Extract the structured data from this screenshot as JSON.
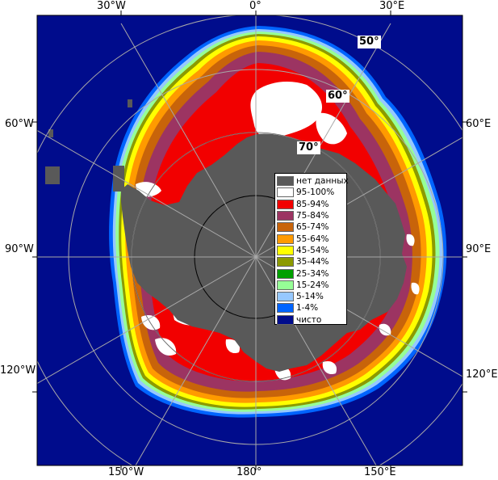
{
  "colors": {
    "ocean": "#000c8c",
    "land": "#595959",
    "frame_bg": "#ffffff",
    "graticule": "#a8a8a8",
    "circle": "#000000"
  },
  "legend": [
    {
      "label": "нет данных",
      "color": "#595959"
    },
    {
      "label": "95-100%",
      "color": "#ffffff"
    },
    {
      "label": "85-94%",
      "color": "#f20000"
    },
    {
      "label": "75-84%",
      "color": "#9c3462"
    },
    {
      "label": "65-74%",
      "color": "#c8640a"
    },
    {
      "label": "55-64%",
      "color": "#ff9a00"
    },
    {
      "label": "45-54%",
      "color": "#ffff00"
    },
    {
      "label": "35-44%",
      "color": "#8c9a00"
    },
    {
      "label": "25-34%",
      "color": "#00a000"
    },
    {
      "label": "15-24%",
      "color": "#96ff96"
    },
    {
      "label": "5-14%",
      "color": "#96c8ff"
    },
    {
      "label": "1-4%",
      "color": "#0064ff"
    },
    {
      "label": "чисто",
      "color": "#000c8c"
    }
  ],
  "longitude_labels": {
    "top_30w": "30°W",
    "top_0": "0°",
    "top_30e": "30°E",
    "left_60w": "60°W",
    "right_60e": "60°E",
    "left_90w": "90°W",
    "right_90e": "90°E",
    "left_120w": "120°W",
    "right_120e": "120°E",
    "bottom_150w": "150°W",
    "bottom_180": "180°",
    "bottom_150e": "150°E"
  },
  "latitude_labels": {
    "lat50": "50°",
    "lat60": "60°",
    "lat70": "70°"
  }
}
